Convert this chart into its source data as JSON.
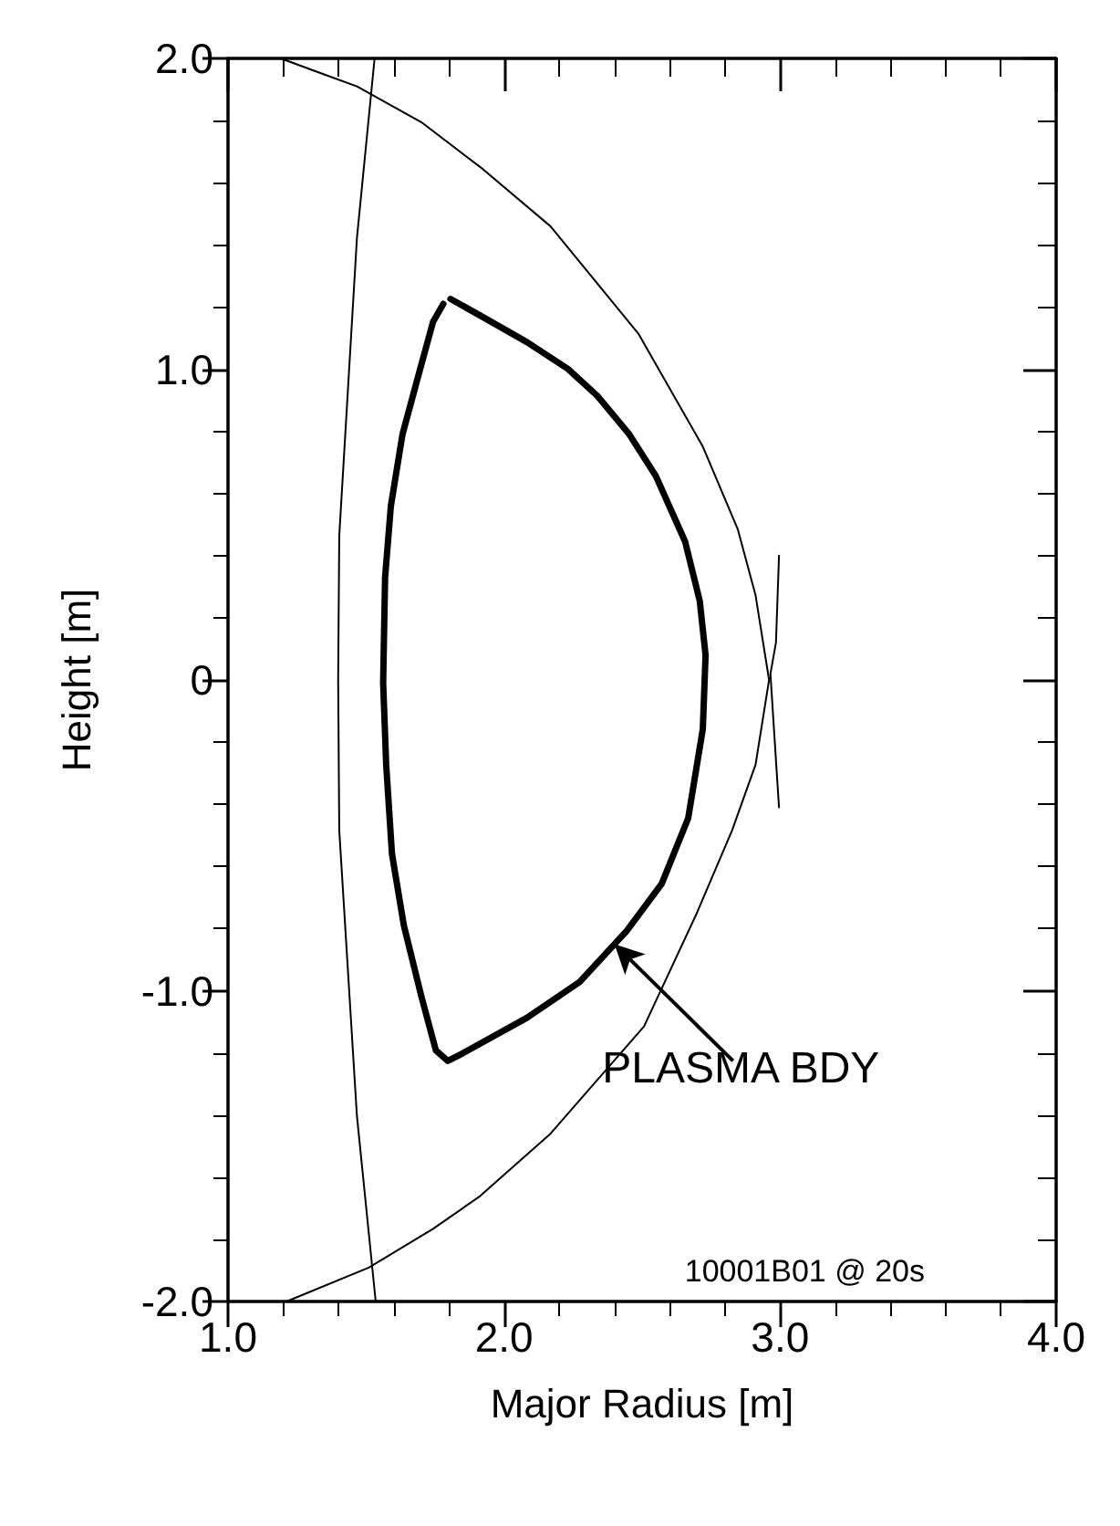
{
  "chart_data": {
    "type": "line",
    "xlabel": "Major Radius [m]",
    "ylabel": "Height [m]",
    "xlim": [
      1.0,
      4.0
    ],
    "xticks": [
      {
        "value": 1.0,
        "label": "1.0"
      },
      {
        "value": 1.2,
        "label": null
      },
      {
        "value": 1.4,
        "label": null
      },
      {
        "value": 1.6,
        "label": null
      },
      {
        "value": 1.8,
        "label": null
      },
      {
        "value": 2.0,
        "label": "2.0"
      },
      {
        "value": 2.2,
        "label": null
      },
      {
        "value": 2.4,
        "label": null
      },
      {
        "value": 2.6,
        "label": null
      },
      {
        "value": 2.8,
        "label": null
      },
      {
        "value": 3.0,
        "label": "3.0"
      },
      {
        "value": 3.2,
        "label": null
      },
      {
        "value": 3.4,
        "label": null
      },
      {
        "value": 3.6,
        "label": null
      },
      {
        "value": 3.8,
        "label": null
      },
      {
        "value": 4.0,
        "label": "4.0"
      }
    ],
    "ylim": [
      -2.0,
      2.0
    ],
    "yticks": [
      {
        "value": -2.0,
        "label": "-2.0"
      },
      {
        "value": -1.8,
        "label": null
      },
      {
        "value": -1.6,
        "label": null
      },
      {
        "value": -1.4,
        "label": null
      },
      {
        "value": -1.2,
        "label": null
      },
      {
        "value": -1.0,
        "label": "-1.0"
      },
      {
        "value": -0.8,
        "label": null
      },
      {
        "value": -0.6,
        "label": null
      },
      {
        "value": -0.4,
        "label": null
      },
      {
        "value": -0.2,
        "label": null
      },
      0,
      {
        "value": 0.2,
        "label": null
      },
      {
        "value": 0.4,
        "label": null
      },
      {
        "value": 0.6,
        "label": null
      },
      {
        "value": 0.8,
        "label": null
      },
      {
        "value": 1.0,
        "label": "1.0"
      },
      {
        "value": 1.2,
        "label": null
      },
      {
        "value": 1.4,
        "label": null
      },
      {
        "value": 1.6,
        "label": null
      },
      {
        "value": 1.8,
        "label": null
      },
      {
        "value": 2.0,
        "label": "2.0"
      }
    ],
    "grid": false,
    "marker": "none",
    "line_style": "solid",
    "series": [
      {
        "color": "#000000",
        "x": [
          1.191,
          1.35,
          1.467,
          1.7,
          1.913,
          2.168,
          2.486,
          2.72,
          2.847,
          2.911,
          2.96,
          2.911,
          2.826,
          2.698,
          2.507,
          2.168,
          1.913,
          1.743,
          1.51,
          1.212
        ],
        "values": [
          2.0,
          1.948,
          1.91,
          1.795,
          1.651,
          1.46,
          1.115,
          0.751,
          0.484,
          0.273,
          0.0,
          -0.273,
          -0.484,
          -0.751,
          -1.115,
          -1.46,
          -1.661,
          -1.766,
          -1.891,
          -2.0
        ]
      },
      {
        "color": "#000000",
        "x": [
          1.531,
          1.467,
          1.403,
          1.399,
          1.403,
          1.467,
          1.535
        ],
        "values": [
          2.0,
          1.422,
          0.464,
          0.0,
          -0.484,
          -1.403,
          -2.0
        ]
      },
      {
        "color": "#000000",
        "x": [
          2.996,
          2.985,
          2.965,
          2.975,
          2.996
        ],
        "values": [
          0.4,
          0.12,
          0.02,
          -0.12,
          -0.41
        ]
      },
      {
        "color": "#000000",
        "x": [
          1.806,
          1.913,
          2.083,
          2.231,
          2.338,
          2.454,
          2.55,
          2.656,
          2.709,
          2.73,
          2.72,
          2.667,
          2.571,
          2.443,
          2.274,
          2.083,
          1.849,
          1.796,
          1.753,
          1.701,
          1.637,
          1.594,
          1.573,
          1.562,
          1.569,
          1.59,
          1.632,
          1.69,
          1.743,
          1.78
        ],
        "values": [
          1.226,
          1.173,
          1.087,
          1.001,
          0.914,
          0.79,
          0.656,
          0.445,
          0.254,
          0.08,
          -0.158,
          -0.445,
          -0.656,
          -0.809,
          -0.972,
          -1.087,
          -1.202,
          -1.226,
          -1.192,
          -1.02,
          -0.79,
          -0.56,
          -0.273,
          -0.01,
          0.33,
          0.56,
          0.79,
          0.981,
          1.153,
          1.21
        ]
      }
    ],
    "annotations": [
      {
        "text": "PLASMA BDY",
        "x": 2.4,
        "y": -0.85
      },
      "10001B01 @ 20s"
    ]
  }
}
